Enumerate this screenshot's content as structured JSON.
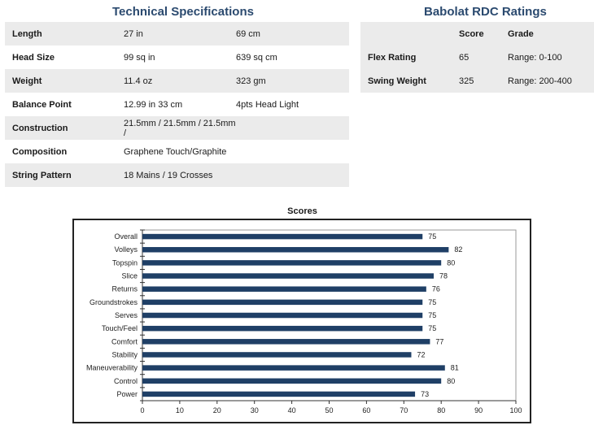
{
  "technical": {
    "title": "Technical Specifications",
    "rows": [
      {
        "label": "Length",
        "v1": "27 in",
        "v2": "69 cm"
      },
      {
        "label": "Head Size",
        "v1": "99 sq in",
        "v2": "639 sq cm"
      },
      {
        "label": "Weight",
        "v1": "11.4 oz",
        "v2": "323 gm"
      },
      {
        "label": "Balance Point",
        "v1": "12.99 in 33 cm",
        "v2": "4pts Head Light"
      },
      {
        "label": "Construction",
        "v1": "21.5mm / 21.5mm / 21.5mm /",
        "v2": ""
      },
      {
        "label": "Composition",
        "v1": "Graphene Touch/Graphite",
        "v2": ""
      },
      {
        "label": "String Pattern",
        "v1": "18 Mains / 19 Crosses",
        "v2": ""
      }
    ]
  },
  "rdc": {
    "title": "Babolat RDC Ratings",
    "header": {
      "label": "",
      "score": "Score",
      "grade": "Grade"
    },
    "rows": [
      {
        "label": "Flex Rating",
        "score": "65",
        "grade": "Range: 0-100"
      },
      {
        "label": "Swing Weight",
        "score": "325",
        "grade": "Range: 200-400"
      }
    ]
  },
  "colors": {
    "bar": "#1f3f66",
    "title": "#2b4a6f",
    "row_shade": "#ebebeb"
  },
  "chart_data": {
    "type": "bar",
    "orientation": "horizontal",
    "title": "Scores",
    "categories": [
      "Overall",
      "Volleys",
      "Topspin",
      "Slice",
      "Returns",
      "Groundstrokes",
      "Serves",
      "Touch/Feel",
      "Comfort",
      "Stability",
      "Maneuverability",
      "Control",
      "Power"
    ],
    "values": [
      75,
      82,
      80,
      78,
      76,
      75,
      75,
      75,
      77,
      72,
      81,
      80,
      73
    ],
    "xlim": [
      0,
      100
    ],
    "xticks": [
      0,
      10,
      20,
      30,
      40,
      50,
      60,
      70,
      80,
      90,
      100
    ],
    "xlabel": "",
    "ylabel": ""
  }
}
